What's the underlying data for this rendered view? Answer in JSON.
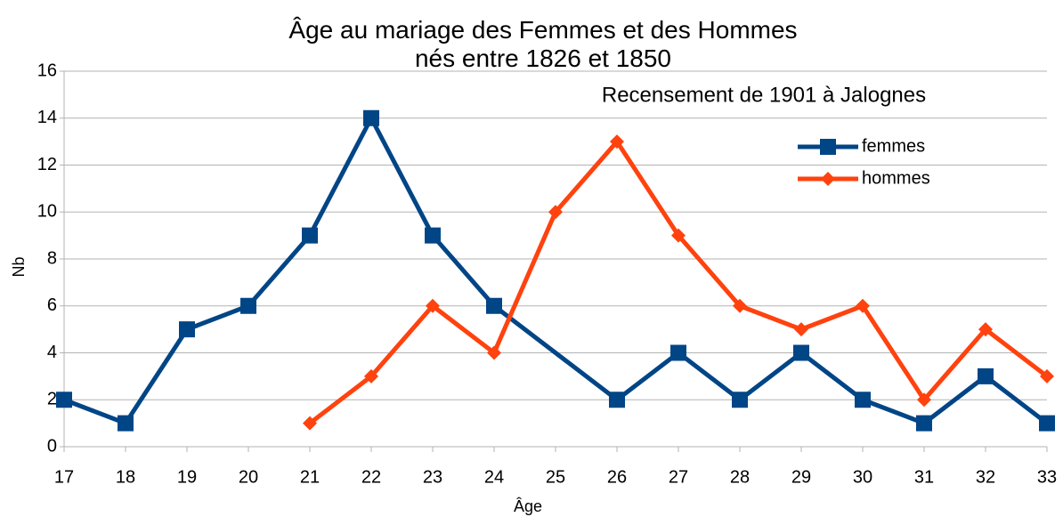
{
  "chart_data": {
    "type": "line",
    "title": "Âge au mariage des Femmes et des Hommes nés entre 1826 et 1850",
    "subtitle": "Recensement de 1901 à Jalognes",
    "x_label": "Âge",
    "y_label": "Nb",
    "xlim": [
      17,
      33
    ],
    "xticks": [
      17,
      18,
      19,
      20,
      21,
      22,
      23,
      24,
      25,
      26,
      27,
      28,
      29,
      30,
      31,
      32,
      33
    ],
    "ylim": [
      0,
      16
    ],
    "yticks": [
      0,
      2,
      4,
      6,
      8,
      10,
      12,
      14,
      16
    ],
    "grid": true,
    "series": [
      {
        "name": "femmes",
        "color": "#004586",
        "marker": "square",
        "x": [
          17,
          18,
          19,
          20,
          21,
          22,
          23,
          24,
          26,
          27,
          28,
          29,
          30,
          31,
          32,
          33
        ],
        "values": [
          2,
          1,
          5,
          6,
          9,
          14,
          9,
          6,
          2,
          4,
          2,
          4,
          2,
          1,
          3,
          1
        ]
      },
      {
        "name": "hommes",
        "color": "#ff420e",
        "marker": "diamond",
        "x": [
          21,
          22,
          23,
          24,
          25,
          26,
          27,
          28,
          29,
          30,
          31,
          32,
          33
        ],
        "values": [
          1,
          3,
          6,
          4,
          10,
          13,
          9,
          6,
          5,
          6,
          2,
          5,
          3
        ]
      }
    ]
  }
}
